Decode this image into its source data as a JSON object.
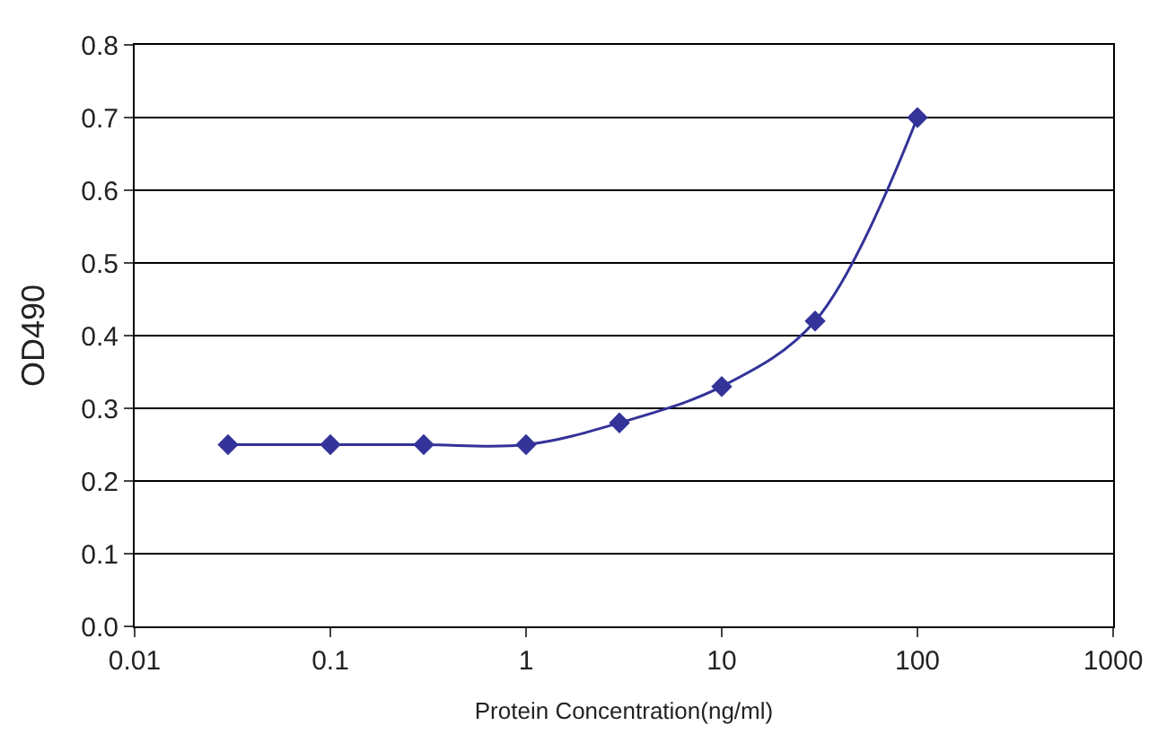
{
  "chart_data": {
    "type": "line",
    "xlabel": "Protein Concentration(ng/ml)",
    "ylabel": "OD490",
    "x": [
      0.03,
      0.1,
      0.3,
      1,
      3,
      10,
      30,
      100
    ],
    "series": [
      {
        "color": "#333399",
        "values": [
          0.25,
          0.25,
          0.25,
          0.25,
          0.28,
          0.33,
          0.42,
          0.7
        ]
      }
    ],
    "log": "x",
    "xlim": [
      0.01,
      1000
    ],
    "xticks": [
      0.01,
      0.1,
      1,
      10,
      100,
      1000
    ],
    "ylim": [
      0,
      0.8
    ],
    "yticks": [
      {
        "value": 0,
        "label": "0.0"
      },
      0.1,
      0.2,
      0.3,
      0.4,
      0.5,
      0.6,
      0.7,
      0.8
    ],
    "grid": "y",
    "marker": "diamond",
    "line_style": "solid",
    "legend": false
  }
}
